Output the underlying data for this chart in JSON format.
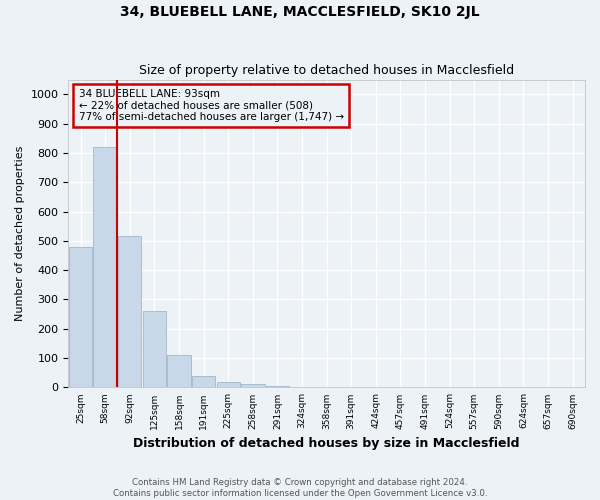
{
  "title": "34, BLUEBELL LANE, MACCLESFIELD, SK10 2JL",
  "subtitle": "Size of property relative to detached houses in Macclesfield",
  "xlabel": "Distribution of detached houses by size in Macclesfield",
  "ylabel": "Number of detached properties",
  "footnote1": "Contains HM Land Registry data © Crown copyright and database right 2024.",
  "footnote2": "Contains public sector information licensed under the Open Government Licence v3.0.",
  "annotation_line1": "34 BLUEBELL LANE: 93sqm",
  "annotation_line2": "← 22% of detached houses are smaller (508)",
  "annotation_line3": "77% of semi-detached houses are larger (1,747) →",
  "bar_color": "#c8d8e8",
  "bar_edgecolor": "#a0b8cc",
  "vline_color": "#cc0000",
  "annotation_box_edgecolor": "#cc0000",
  "background_color": "#edf2f7",
  "ylim": [
    0,
    1050
  ],
  "yticks": [
    0,
    100,
    200,
    300,
    400,
    500,
    600,
    700,
    800,
    900,
    1000
  ],
  "bins": [
    "25sqm",
    "58sqm",
    "92sqm",
    "125sqm",
    "158sqm",
    "191sqm",
    "225sqm",
    "258sqm",
    "291sqm",
    "324sqm",
    "358sqm",
    "391sqm",
    "424sqm",
    "457sqm",
    "491sqm",
    "524sqm",
    "557sqm",
    "590sqm",
    "624sqm",
    "657sqm",
    "690sqm"
  ],
  "values": [
    480,
    820,
    515,
    260,
    110,
    40,
    20,
    10,
    5,
    0,
    0,
    0,
    0,
    0,
    0,
    0,
    0,
    0,
    0,
    0,
    0
  ],
  "vline_x": 1.5
}
